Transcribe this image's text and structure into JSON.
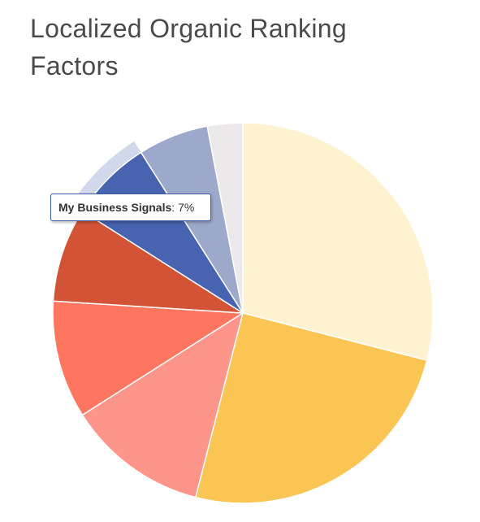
{
  "chart_data": {
    "type": "pie",
    "title": "Localized Organic Ranking Factors",
    "slices": [
      {
        "value": 29,
        "color": "#fef2d0"
      },
      {
        "value": 25,
        "color": "#fbc553"
      },
      {
        "value": 12,
        "color": "#fd958b"
      },
      {
        "value": 10,
        "color": "#fe7660"
      },
      {
        "value": 8,
        "color": "#d35336"
      },
      {
        "value": 7,
        "color": "#4863b0"
      },
      {
        "value": 6,
        "color": "#9da9cb"
      },
      {
        "value": 3,
        "color": "#ebe9ea"
      }
    ],
    "highlighted_index": 5,
    "tooltip": {
      "label": "My Business Signals",
      "value_text": "7%"
    }
  }
}
